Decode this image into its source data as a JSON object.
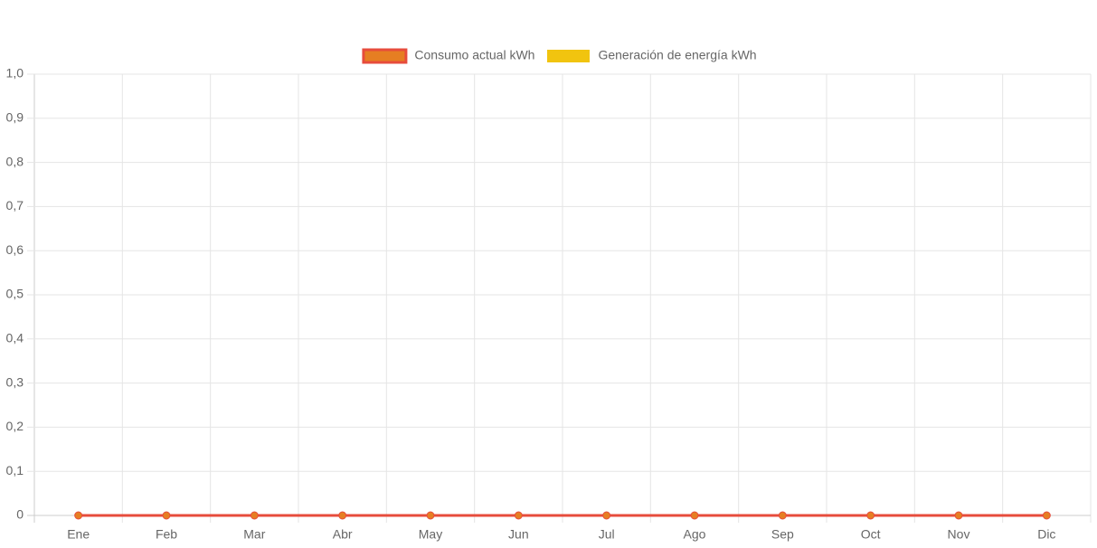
{
  "chart_data": {
    "type": "line",
    "categories": [
      "Ene",
      "Feb",
      "Mar",
      "Abr",
      "May",
      "Jun",
      "Jul",
      "Ago",
      "Sep",
      "Oct",
      "Nov",
      "Dic"
    ],
    "series": [
      {
        "name": "Consumo actual kWh",
        "type": "line",
        "color": "#e74c3c",
        "point_color": "#e67e22",
        "values": [
          0,
          0,
          0,
          0,
          0,
          0,
          0,
          0,
          0,
          0,
          0,
          0
        ]
      },
      {
        "name": "Generación de energía kWh",
        "type": "bar",
        "color": "#f1c40f",
        "values": [
          0,
          0,
          0,
          0,
          0,
          0,
          0,
          0,
          0,
          0,
          0,
          0
        ]
      }
    ],
    "ylim": [
      0,
      1
    ],
    "yticks": [
      0,
      {
        "value": 0.1,
        "label": "0,1"
      },
      {
        "value": 0.2,
        "label": "0,2"
      },
      {
        "value": 0.3,
        "label": "0,3"
      },
      {
        "value": 0.4,
        "label": "0,4"
      },
      {
        "value": 0.5,
        "label": "0,5"
      },
      {
        "value": 0.6,
        "label": "0,6"
      },
      {
        "value": 0.7,
        "label": "0,7"
      },
      {
        "value": 0.8,
        "label": "0,8"
      },
      {
        "value": 0.9,
        "label": "0,9"
      },
      {
        "value": 1,
        "label": "1,0"
      }
    ],
    "grid": true,
    "legend": "top"
  }
}
